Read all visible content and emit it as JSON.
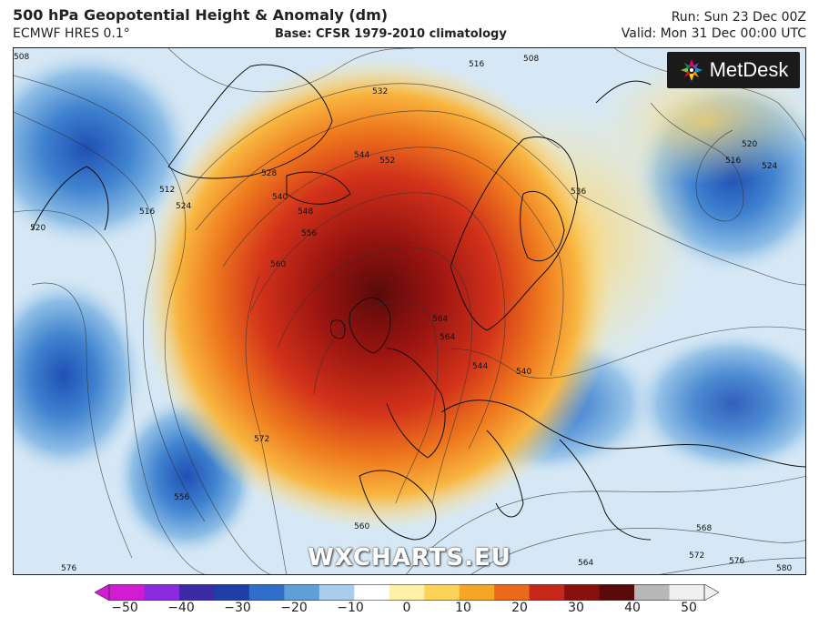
{
  "header": {
    "title": "500 hPa Geopotential Height & Anomaly (dm)",
    "model": "ECMWF HRES 0.1°",
    "base": "Base: CFSR 1979-2010 climatology",
    "run": "Run: Sun 23 Dec 00Z",
    "valid": "Valid: Mon 31 Dec 00:00 UTC"
  },
  "branding": {
    "logo_text": "MetDesk",
    "watermark": "WXCHARTS.EU"
  },
  "contour_labels": [
    "508",
    "508",
    "520",
    "516",
    "512",
    "524",
    "528",
    "532",
    "536",
    "540",
    "544",
    "548",
    "552",
    "556",
    "560",
    "564",
    "572",
    "576",
    "580",
    "568",
    "556",
    "560",
    "564",
    "572",
    "576",
    "520",
    "516",
    "524",
    "540",
    "544",
    "564",
    "516"
  ],
  "colorbar": {
    "ticks": [
      "−50",
      "−40",
      "−30",
      "−20",
      "−10",
      "0",
      "10",
      "20",
      "30",
      "40",
      "50"
    ],
    "colors": [
      "#d21bd2",
      "#8a2be2",
      "#3b2ba8",
      "#1f3fa8",
      "#2f6fc9",
      "#5e9fd8",
      "#a9cdea",
      "#ffffff",
      "#fff2a8",
      "#fcd45a",
      "#f5a623",
      "#ea6a1a",
      "#c8281a",
      "#8a1010",
      "#5a0a0a",
      "#b8b8b8",
      "#f0f0f0"
    ]
  }
}
